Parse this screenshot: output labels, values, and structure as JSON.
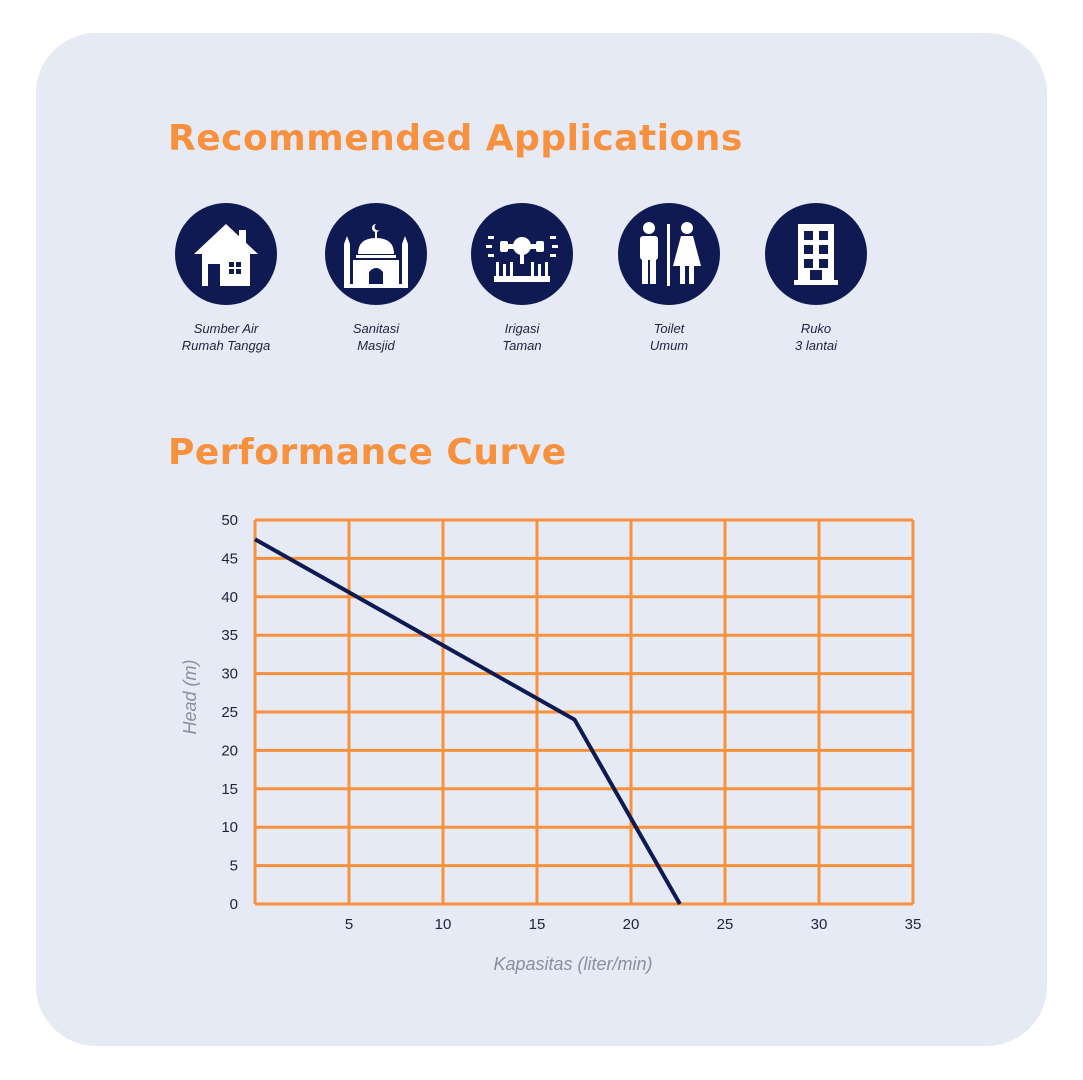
{
  "applications": {
    "title": "Recommended Applications",
    "items": [
      {
        "icon": "house-icon",
        "line1": "Sumber Air",
        "line2": "Rumah Tangga"
      },
      {
        "icon": "mosque-icon",
        "line1": "Sanitasi",
        "line2": "Masjid"
      },
      {
        "icon": "sprinkler-icon",
        "line1": "Irigasi",
        "line2": "Taman"
      },
      {
        "icon": "restroom-icon",
        "line1": "Toilet",
        "line2": "Umum"
      },
      {
        "icon": "building-icon",
        "line1": "Ruko",
        "line2": "3 lantai"
      }
    ]
  },
  "performance": {
    "title": "Performance Curve"
  },
  "colors": {
    "accent": "#f7913d",
    "navy": "#0f1a52",
    "background": "#e6eaf4"
  },
  "chart_data": {
    "type": "line",
    "xlabel": "Kapasitas (liter/min)",
    "ylabel": "Head (m)",
    "xlim": [
      0,
      35
    ],
    "ylim": [
      0,
      50
    ],
    "x_ticks": [
      5,
      10,
      15,
      20,
      25,
      30,
      35
    ],
    "y_ticks": [
      0,
      5,
      10,
      15,
      20,
      25,
      30,
      35,
      40,
      45,
      50
    ],
    "grid": true,
    "series": [
      {
        "x": [
          0,
          17,
          22.6
        ],
        "y": [
          47.5,
          24,
          0
        ]
      }
    ]
  }
}
